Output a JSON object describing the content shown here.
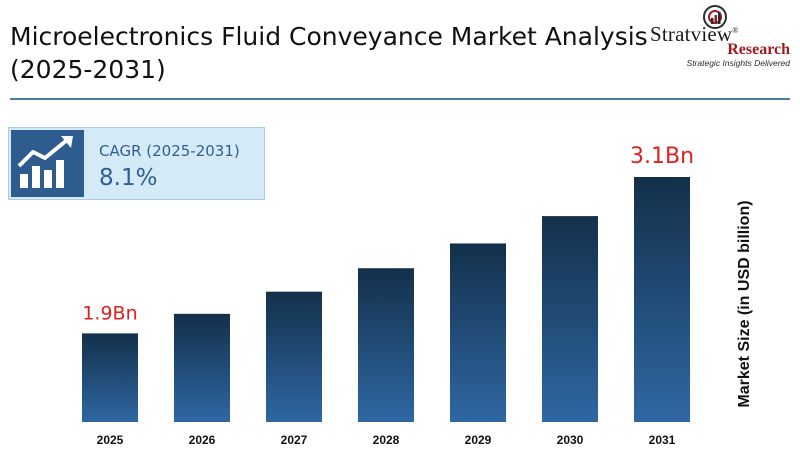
{
  "header": {
    "title": "Microelectronics Fluid Conveyance Market Analysis (2025-2031)"
  },
  "logo": {
    "name": "Stratview",
    "registered": "®",
    "sub": "Research",
    "tagline": "Strategic Insights Delivered",
    "icon": "target-chart-icon"
  },
  "cagr": {
    "label": "CAGR (2025-2031)",
    "value": "8.1%",
    "icon": "growth-chart-icon"
  },
  "colors": {
    "bar_top": "#13304a",
    "bar_bottom": "#2f67a3",
    "highlight": "#e0201e",
    "divider": "#4a7fa0"
  },
  "chart_data": {
    "type": "bar",
    "categories": [
      "2025",
      "2026",
      "2027",
      "2028",
      "2029",
      "2030",
      "2031"
    ],
    "values": [
      1.9,
      2.05,
      2.22,
      2.4,
      2.59,
      2.8,
      3.1
    ],
    "data_labels": [
      {
        "index": 0,
        "text": "1.9Bn"
      },
      {
        "index": 6,
        "text": "3.1Bn"
      }
    ],
    "ylabel": "Market Size (in USD billion)",
    "ylim": [
      1.22,
      3.2
    ],
    "grid": false,
    "legend": "none"
  }
}
